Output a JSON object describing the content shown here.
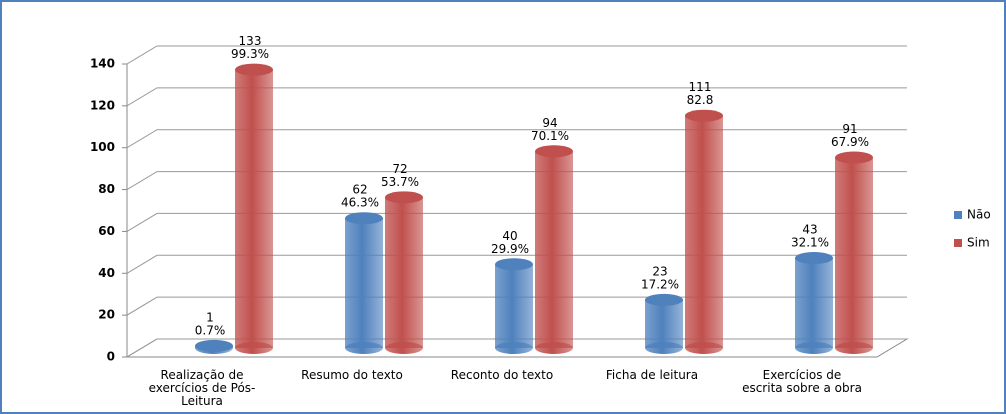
{
  "chart_data": {
    "type": "bar3d",
    "categories": [
      "Realização de exercícios de Pós-Leitura",
      "Resumo do texto",
      "Reconto do texto",
      "Ficha de leitura",
      "Exercícios de escrita sobre a obra"
    ],
    "series": [
      {
        "name": "Não",
        "color": "#4f81bd",
        "values": [
          1,
          62,
          40,
          23,
          43
        ],
        "percent_labels": [
          "0.7%",
          "46.3%",
          "29.9%",
          "17.2%",
          "32.1%"
        ]
      },
      {
        "name": "Sim",
        "color": "#c0504d",
        "values": [
          133,
          72,
          94,
          111,
          91
        ],
        "percent_labels": [
          "99.3%",
          "53.7%",
          "70.1%",
          "82.8",
          "67.9%"
        ]
      }
    ],
    "ylim": [
      0,
      140
    ],
    "yticks": [
      0,
      20,
      40,
      60,
      80,
      100,
      120,
      140
    ],
    "grid": true,
    "legend": "right"
  }
}
